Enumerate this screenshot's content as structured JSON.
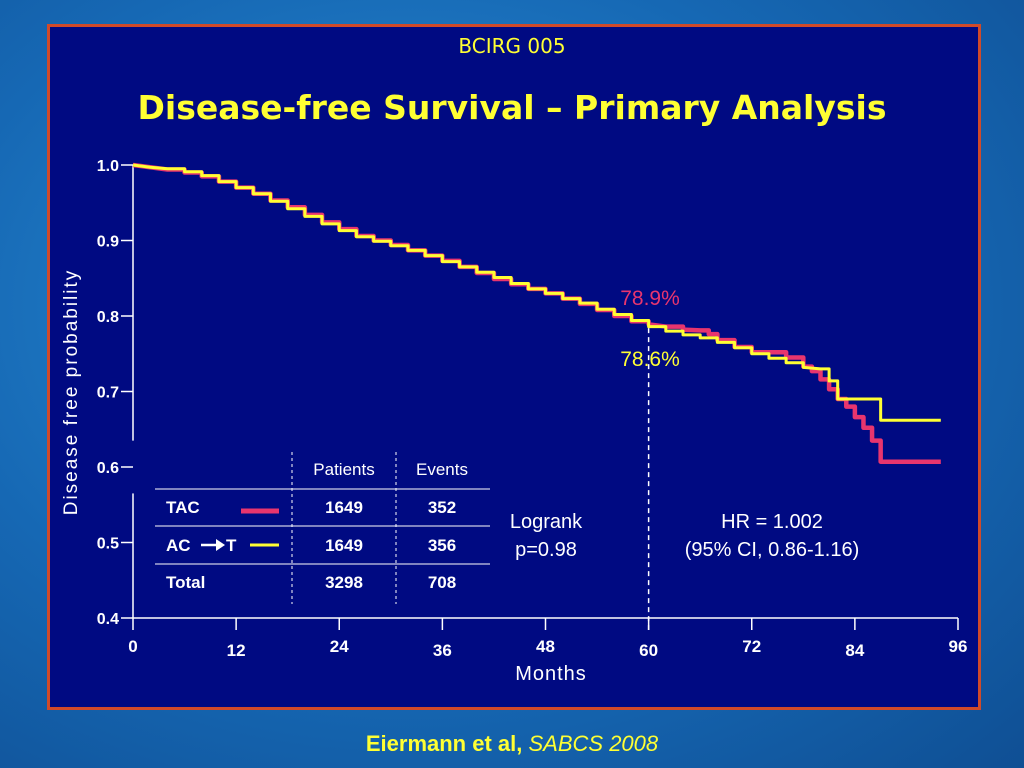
{
  "header": {
    "study": "BCIRG 005",
    "title": "Disease-free Survival – Primary Analysis"
  },
  "citation": {
    "authors": "Eiermann et al,",
    "source": "SABCS 2008"
  },
  "colors": {
    "tac": "#e8356e",
    "act": "#ffff33",
    "text_yellow": "#ffff33",
    "panel_bg": "#000a82",
    "border": "#d04a2a"
  },
  "chart_data": {
    "type": "line",
    "title": "Disease-free Survival – Primary Analysis",
    "xlabel": "Months",
    "ylabel": "Disease free probability",
    "xlim": [
      0,
      96
    ],
    "ylim": [
      0.4,
      1.0
    ],
    "xticks": [
      0,
      12,
      24,
      36,
      48,
      60,
      72,
      84,
      96
    ],
    "yticks": [
      0.4,
      0.5,
      0.6,
      0.7,
      0.8,
      0.9,
      1.0
    ],
    "xtick_labels": [
      "0",
      "12",
      "24",
      "36",
      "48",
      "60",
      "72",
      "84",
      "96"
    ],
    "ytick_labels": [
      "0.4",
      "0.5",
      "0.6",
      "0.7",
      "0.8",
      "0.9",
      "1.0"
    ],
    "step": true,
    "series": [
      {
        "name": "TAC",
        "x": [
          0,
          2,
          4,
          6,
          8,
          10,
          12,
          14,
          16,
          18,
          20,
          22,
          24,
          26,
          28,
          30,
          32,
          34,
          36,
          38,
          40,
          42,
          44,
          46,
          48,
          50,
          52,
          54,
          56,
          58,
          60,
          62,
          64,
          66,
          67,
          68,
          70,
          72,
          74,
          76,
          78,
          79,
          80,
          81,
          82,
          83,
          84,
          85,
          86,
          87,
          88,
          94
        ],
        "y": [
          1.0,
          0.997,
          0.994,
          0.99,
          0.985,
          0.978,
          0.97,
          0.962,
          0.953,
          0.944,
          0.934,
          0.924,
          0.915,
          0.906,
          0.9,
          0.894,
          0.887,
          0.88,
          0.873,
          0.865,
          0.857,
          0.849,
          0.842,
          0.836,
          0.83,
          0.823,
          0.816,
          0.808,
          0.8,
          0.793,
          0.789,
          0.786,
          0.782,
          0.781,
          0.776,
          0.768,
          0.759,
          0.752,
          0.752,
          0.745,
          0.733,
          0.727,
          0.716,
          0.703,
          0.69,
          0.68,
          0.666,
          0.652,
          0.635,
          0.607,
          0.607,
          0.607
        ]
      },
      {
        "name": "AC → T",
        "x": [
          0,
          2,
          4,
          6,
          8,
          10,
          12,
          14,
          16,
          18,
          20,
          22,
          24,
          26,
          28,
          30,
          32,
          34,
          36,
          38,
          40,
          42,
          44,
          46,
          48,
          50,
          52,
          54,
          56,
          58,
          60,
          62,
          64,
          66,
          68,
          70,
          72,
          74,
          76,
          78,
          80,
          81,
          82,
          84,
          86,
          87,
          88,
          94
        ],
        "y": [
          1.0,
          0.997,
          0.995,
          0.991,
          0.986,
          0.978,
          0.97,
          0.962,
          0.952,
          0.942,
          0.932,
          0.922,
          0.913,
          0.905,
          0.899,
          0.893,
          0.887,
          0.88,
          0.872,
          0.865,
          0.858,
          0.851,
          0.843,
          0.836,
          0.83,
          0.823,
          0.817,
          0.809,
          0.802,
          0.794,
          0.786,
          0.78,
          0.775,
          0.771,
          0.765,
          0.758,
          0.75,
          0.744,
          0.738,
          0.732,
          0.73,
          0.714,
          0.69,
          0.69,
          0.69,
          0.662,
          0.662,
          0.662
        ]
      }
    ],
    "annotations": {
      "value_tac": "78.9%",
      "value_act": "78.6%",
      "marker_x": 60,
      "logrank_line1": "Logrank",
      "logrank_line2": "p=0.98",
      "hr_line1": "HR = 1.002",
      "hr_line2": "(95% CI, 0.86-1.16)"
    },
    "table": {
      "headers": [
        "",
        "Patients",
        "Events"
      ],
      "rows": [
        {
          "label": "TAC",
          "patients": "1649",
          "events": "352",
          "swatch": "tac"
        },
        {
          "label_a": "AC",
          "label_b": "T",
          "patients": "1649",
          "events": "356",
          "swatch": "act"
        },
        {
          "label": "Total",
          "patients": "3298",
          "events": "708"
        }
      ]
    }
  }
}
